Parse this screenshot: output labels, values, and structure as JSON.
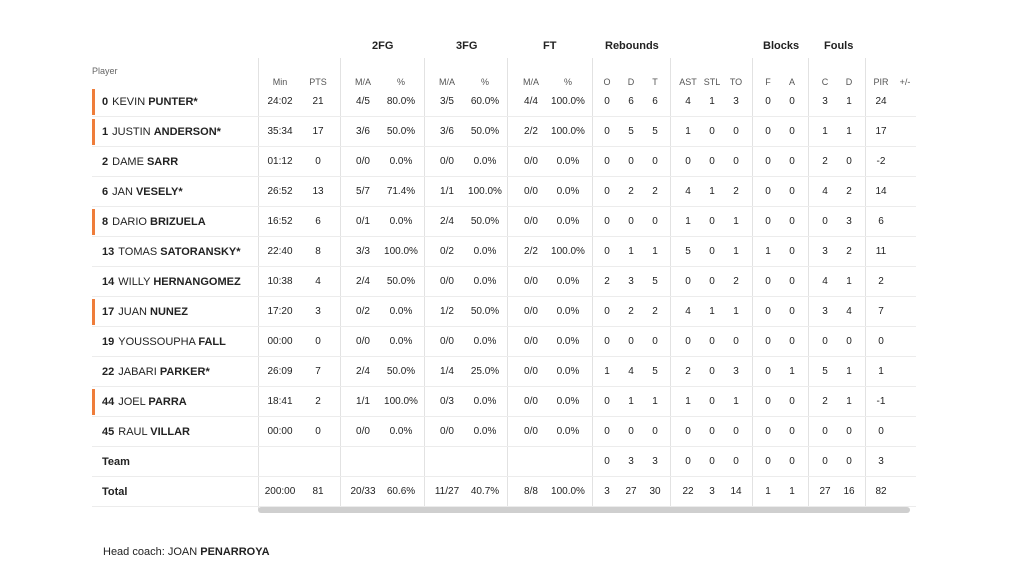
{
  "groups": {
    "two_fg": "2FG",
    "three_fg": "3FG",
    "ft": "FT",
    "rebounds": "Rebounds",
    "blocks": "Blocks",
    "fouls": "Fouls"
  },
  "player_header": "Player",
  "sub_headers": {
    "min": "Min",
    "pts": "PTS",
    "fg2_ma": "M/A",
    "fg2_pct": "%",
    "fg3_ma": "M/A",
    "fg3_pct": "%",
    "ft_ma": "M/A",
    "ft_pct": "%",
    "o": "O",
    "d": "D",
    "t": "T",
    "ast": "AST",
    "stl": "STL",
    "to": "TO",
    "bf": "F",
    "ba": "A",
    "fc": "C",
    "fd": "D",
    "pir": "PIR",
    "pm": "+/-"
  },
  "players": [
    {
      "num": "0",
      "first": "KEVIN",
      "last": "PUNTER*",
      "starter": true,
      "min": "24:02",
      "pts": "21",
      "fg2": "4/5",
      "fg2p": "80.0%",
      "fg3": "3/5",
      "fg3p": "60.0%",
      "ft": "4/4",
      "ftp": "100.0%",
      "o": "0",
      "d": "6",
      "t": "6",
      "ast": "4",
      "stl": "1",
      "to": "3",
      "bf": "0",
      "ba": "0",
      "fc": "3",
      "fd": "1",
      "pir": "24",
      "pm": ""
    },
    {
      "num": "1",
      "first": "JUSTIN",
      "last": "ANDERSON*",
      "starter": true,
      "min": "35:34",
      "pts": "17",
      "fg2": "3/6",
      "fg2p": "50.0%",
      "fg3": "3/6",
      "fg3p": "50.0%",
      "ft": "2/2",
      "ftp": "100.0%",
      "o": "0",
      "d": "5",
      "t": "5",
      "ast": "1",
      "stl": "0",
      "to": "0",
      "bf": "0",
      "ba": "0",
      "fc": "1",
      "fd": "1",
      "pir": "17",
      "pm": ""
    },
    {
      "num": "2",
      "first": "DAME",
      "last": "SARR",
      "starter": false,
      "min": "01:12",
      "pts": "0",
      "fg2": "0/0",
      "fg2p": "0.0%",
      "fg3": "0/0",
      "fg3p": "0.0%",
      "ft": "0/0",
      "ftp": "0.0%",
      "o": "0",
      "d": "0",
      "t": "0",
      "ast": "0",
      "stl": "0",
      "to": "0",
      "bf": "0",
      "ba": "0",
      "fc": "2",
      "fd": "0",
      "pir": "-2",
      "pm": ""
    },
    {
      "num": "6",
      "first": "JAN",
      "last": "VESELY*",
      "starter": false,
      "min": "26:52",
      "pts": "13",
      "fg2": "5/7",
      "fg2p": "71.4%",
      "fg3": "1/1",
      "fg3p": "100.0%",
      "ft": "0/0",
      "ftp": "0.0%",
      "o": "0",
      "d": "2",
      "t": "2",
      "ast": "4",
      "stl": "1",
      "to": "2",
      "bf": "0",
      "ba": "0",
      "fc": "4",
      "fd": "2",
      "pir": "14",
      "pm": ""
    },
    {
      "num": "8",
      "first": "DARIO",
      "last": "BRIZUELA",
      "starter": true,
      "min": "16:52",
      "pts": "6",
      "fg2": "0/1",
      "fg2p": "0.0%",
      "fg3": "2/4",
      "fg3p": "50.0%",
      "ft": "0/0",
      "ftp": "0.0%",
      "o": "0",
      "d": "0",
      "t": "0",
      "ast": "1",
      "stl": "0",
      "to": "1",
      "bf": "0",
      "ba": "0",
      "fc": "0",
      "fd": "3",
      "pir": "6",
      "pm": ""
    },
    {
      "num": "13",
      "first": "TOMAS",
      "last": "SATORANSKY*",
      "starter": false,
      "min": "22:40",
      "pts": "8",
      "fg2": "3/3",
      "fg2p": "100.0%",
      "fg3": "0/2",
      "fg3p": "0.0%",
      "ft": "2/2",
      "ftp": "100.0%",
      "o": "0",
      "d": "1",
      "t": "1",
      "ast": "5",
      "stl": "0",
      "to": "1",
      "bf": "1",
      "ba": "0",
      "fc": "3",
      "fd": "2",
      "pir": "11",
      "pm": ""
    },
    {
      "num": "14",
      "first": "WILLY",
      "last": "HERNANGOMEZ",
      "starter": false,
      "min": "10:38",
      "pts": "4",
      "fg2": "2/4",
      "fg2p": "50.0%",
      "fg3": "0/0",
      "fg3p": "0.0%",
      "ft": "0/0",
      "ftp": "0.0%",
      "o": "2",
      "d": "3",
      "t": "5",
      "ast": "0",
      "stl": "0",
      "to": "2",
      "bf": "0",
      "ba": "0",
      "fc": "4",
      "fd": "1",
      "pir": "2",
      "pm": ""
    },
    {
      "num": "17",
      "first": "JUAN",
      "last": "NUNEZ",
      "starter": true,
      "min": "17:20",
      "pts": "3",
      "fg2": "0/2",
      "fg2p": "0.0%",
      "fg3": "1/2",
      "fg3p": "50.0%",
      "ft": "0/0",
      "ftp": "0.0%",
      "o": "0",
      "d": "2",
      "t": "2",
      "ast": "4",
      "stl": "1",
      "to": "1",
      "bf": "0",
      "ba": "0",
      "fc": "3",
      "fd": "4",
      "pir": "7",
      "pm": ""
    },
    {
      "num": "19",
      "first": "YOUSSOUPHA",
      "last": "FALL",
      "starter": false,
      "min": "00:00",
      "pts": "0",
      "fg2": "0/0",
      "fg2p": "0.0%",
      "fg3": "0/0",
      "fg3p": "0.0%",
      "ft": "0/0",
      "ftp": "0.0%",
      "o": "0",
      "d": "0",
      "t": "0",
      "ast": "0",
      "stl": "0",
      "to": "0",
      "bf": "0",
      "ba": "0",
      "fc": "0",
      "fd": "0",
      "pir": "0",
      "pm": ""
    },
    {
      "num": "22",
      "first": "JABARI",
      "last": "PARKER*",
      "starter": false,
      "min": "26:09",
      "pts": "7",
      "fg2": "2/4",
      "fg2p": "50.0%",
      "fg3": "1/4",
      "fg3p": "25.0%",
      "ft": "0/0",
      "ftp": "0.0%",
      "o": "1",
      "d": "4",
      "t": "5",
      "ast": "2",
      "stl": "0",
      "to": "3",
      "bf": "0",
      "ba": "1",
      "fc": "5",
      "fd": "1",
      "pir": "1",
      "pm": ""
    },
    {
      "num": "44",
      "first": "JOEL",
      "last": "PARRA",
      "starter": true,
      "min": "18:41",
      "pts": "2",
      "fg2": "1/1",
      "fg2p": "100.0%",
      "fg3": "0/3",
      "fg3p": "0.0%",
      "ft": "0/0",
      "ftp": "0.0%",
      "o": "0",
      "d": "1",
      "t": "1",
      "ast": "1",
      "stl": "0",
      "to": "1",
      "bf": "0",
      "ba": "0",
      "fc": "2",
      "fd": "1",
      "pir": "-1",
      "pm": ""
    },
    {
      "num": "45",
      "first": "RAUL",
      "last": "VILLAR",
      "starter": false,
      "min": "00:00",
      "pts": "0",
      "fg2": "0/0",
      "fg2p": "0.0%",
      "fg3": "0/0",
      "fg3p": "0.0%",
      "ft": "0/0",
      "ftp": "0.0%",
      "o": "0",
      "d": "0",
      "t": "0",
      "ast": "0",
      "stl": "0",
      "to": "0",
      "bf": "0",
      "ba": "0",
      "fc": "0",
      "fd": "0",
      "pir": "0",
      "pm": ""
    }
  ],
  "team_row": {
    "label": "Team",
    "o": "0",
    "d": "3",
    "t": "3",
    "ast": "0",
    "stl": "0",
    "to": "0",
    "bf": "0",
    "ba": "0",
    "fc": "0",
    "fd": "0",
    "pir": "3"
  },
  "total_row": {
    "label": "Total",
    "min": "200:00",
    "pts": "81",
    "fg2": "20/33",
    "fg2p": "60.6%",
    "fg3": "11/27",
    "fg3p": "40.7%",
    "ft": "8/8",
    "ftp": "100.0%",
    "o": "3",
    "d": "27",
    "t": "30",
    "ast": "22",
    "stl": "3",
    "to": "14",
    "bf": "1",
    "ba": "1",
    "fc": "27",
    "fd": "16",
    "pir": "82"
  },
  "coach": {
    "label": "Head coach:",
    "first": "JOAN",
    "last": "PENARROYA"
  },
  "colors": {
    "starter_accent": "#ef7d3a"
  }
}
